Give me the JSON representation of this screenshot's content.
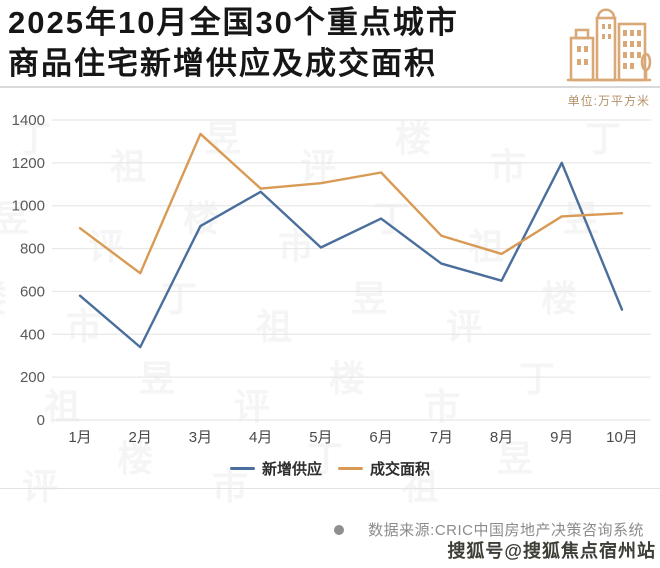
{
  "header": {
    "title_line1": "2025年10月全国30个重点城市",
    "title_line2": "商品住宅新增供应及成交面积",
    "unit_label": "单位:万平方米"
  },
  "chart_data": {
    "type": "line",
    "categories": [
      "1月",
      "2月",
      "3月",
      "4月",
      "5月",
      "6月",
      "7月",
      "8月",
      "9月",
      "10月"
    ],
    "series": [
      {
        "name": "新增供应",
        "color": "#4a6f9c",
        "values": [
          580,
          340,
          905,
          1065,
          805,
          940,
          730,
          650,
          1200,
          515
        ]
      },
      {
        "name": "成交面积",
        "color": "#d89a54",
        "values": [
          895,
          685,
          1335,
          1080,
          1105,
          1155,
          860,
          775,
          950,
          965
        ]
      }
    ],
    "yticks": [
      0,
      200,
      400,
      600,
      800,
      1000,
      1200,
      1400
    ],
    "ylim": [
      0,
      1400
    ],
    "grid": "horizontal",
    "legend_position": "bottom",
    "title": "2025年10月全国30个重点城市商品住宅新增供应及成交面积",
    "ylabel_unit": "万平方米"
  },
  "footer": {
    "source": "数据来源:CRIC中国房地产决策咨询系统"
  },
  "watermarks": {
    "background": "丁祖昱评楼市",
    "sohu": "搜狐号@搜狐焦点宿州站"
  },
  "colors": {
    "accent_tan": "#d9a877",
    "grid_line": "#e8e8e8",
    "axis_text": "#595959"
  }
}
